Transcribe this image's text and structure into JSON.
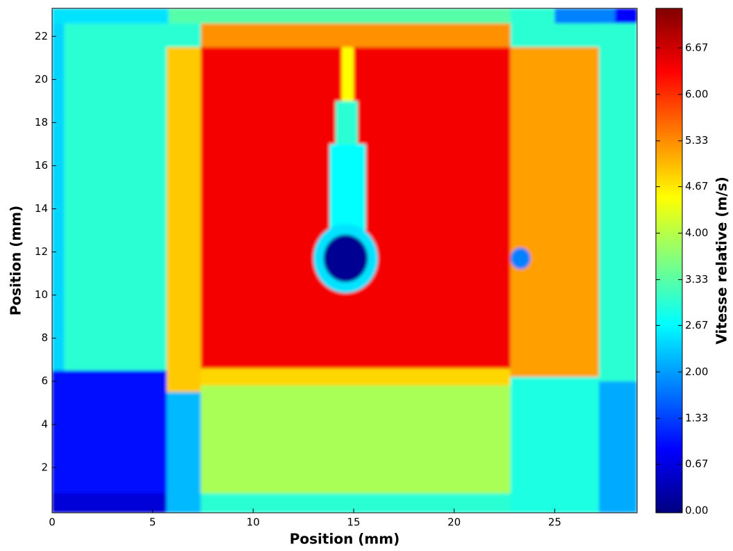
{
  "chart_data": {
    "type": "heatmap",
    "xlabel": "Position (mm)",
    "ylabel": "Position (mm)",
    "colorbar_label": "Vitesse relative (m/s)",
    "xlim": [
      0,
      29.1
    ],
    "ylim": [
      -0.1,
      23.3
    ],
    "xticks": [
      0,
      5,
      10,
      15,
      20,
      25
    ],
    "yticks": [
      2,
      4,
      6,
      8,
      10,
      12,
      14,
      16,
      18,
      20,
      22
    ],
    "colormap": "jet",
    "clim": [
      -0.03,
      7.24
    ],
    "cticks": [
      {
        "value": 0,
        "label": "0.00"
      },
      {
        "value": 0.67,
        "label": "0.67"
      },
      {
        "value": 1.33,
        "label": "1.33"
      },
      {
        "value": 2,
        "label": "2.00"
      },
      {
        "value": 2.67,
        "label": "2.67"
      },
      {
        "value": 3.33,
        "label": "3.33"
      },
      {
        "value": 4,
        "label": "4.00"
      },
      {
        "value": 4.67,
        "label": "4.67"
      },
      {
        "value": 5.33,
        "label": "5.33"
      },
      {
        "value": 6,
        "label": "6.00"
      },
      {
        "value": 6.67,
        "label": "6.67"
      }
    ],
    "cells": [
      {
        "x": [
          0,
          29.1
        ],
        "y": [
          -0.1,
          23.3
        ],
        "value": 3.0
      },
      {
        "x": [
          0,
          0.6
        ],
        "y": [
          6.5,
          22.6
        ],
        "value": 2.4
      },
      {
        "x": [
          0,
          5.7
        ],
        "y": [
          -0.1,
          6.5
        ],
        "value": 1.0
      },
      {
        "x": [
          0,
          5.7
        ],
        "y": [
          -0.1,
          0.8
        ],
        "value": 0.6
      },
      {
        "x": [
          0,
          5.8
        ],
        "y": [
          22.6,
          23.3
        ],
        "value": 2.5
      },
      {
        "x": [
          5.8,
          22.8
        ],
        "y": [
          22.6,
          23.3
        ],
        "value": 3.3
      },
      {
        "x": [
          25,
          28
        ],
        "y": [
          22.6,
          23.3
        ],
        "value": 1.8
      },
      {
        "x": [
          28,
          29.1
        ],
        "y": [
          22.6,
          23.3
        ],
        "value": 0.9
      },
      {
        "x": [
          5.7,
          7.4
        ],
        "y": [
          -0.1,
          5.5
        ],
        "value": 2.2
      },
      {
        "x": [
          5.7,
          7.4
        ],
        "y": [
          5.5,
          21.5
        ],
        "value": 4.9
      },
      {
        "x": [
          7.4,
          22.8
        ],
        "y": [
          21.5,
          22.6
        ],
        "value": 5.3
      },
      {
        "x": [
          7.4,
          22.8
        ],
        "y": [
          0.8,
          5.8
        ],
        "value": 3.9
      },
      {
        "x": [
          7.4,
          22.8
        ],
        "y": [
          5.8,
          6.6
        ],
        "value": 4.8
      },
      {
        "x": [
          7.4,
          22.8
        ],
        "y": [
          6.6,
          21.5
        ],
        "value": 6.4
      },
      {
        "x": [
          22.8,
          27.2
        ],
        "y": [
          6.2,
          21.5
        ],
        "value": 5.2
      },
      {
        "x": [
          22.8,
          27.2
        ],
        "y": [
          -0.1,
          6.2
        ],
        "value": 2.9
      },
      {
        "x": [
          27.2,
          29.1
        ],
        "y": [
          -0.1,
          6
        ],
        "value": 2.1
      },
      {
        "x": [
          27.2,
          29.1
        ],
        "y": [
          6,
          22.6
        ],
        "value": 3.0
      },
      {
        "x": [
          14.4,
          15
        ],
        "y": [
          19,
          21.5
        ],
        "value": 4.5
      },
      {
        "x": [
          14.1,
          15.2
        ],
        "y": [
          17,
          19
        ],
        "value": 3.0
      },
      {
        "x": [
          13.8,
          15.6
        ],
        "y": [
          13,
          17
        ],
        "value": 2.7
      }
    ],
    "spots": [
      {
        "center": [
          14.6,
          11.7
        ],
        "radius": 1.6,
        "value": 2.5
      },
      {
        "center": [
          14.6,
          11.7
        ],
        "radius": 1.1,
        "value": 0.1
      },
      {
        "center": [
          23.3,
          11.7
        ],
        "radius": 0.5,
        "value": 1.8
      }
    ]
  }
}
